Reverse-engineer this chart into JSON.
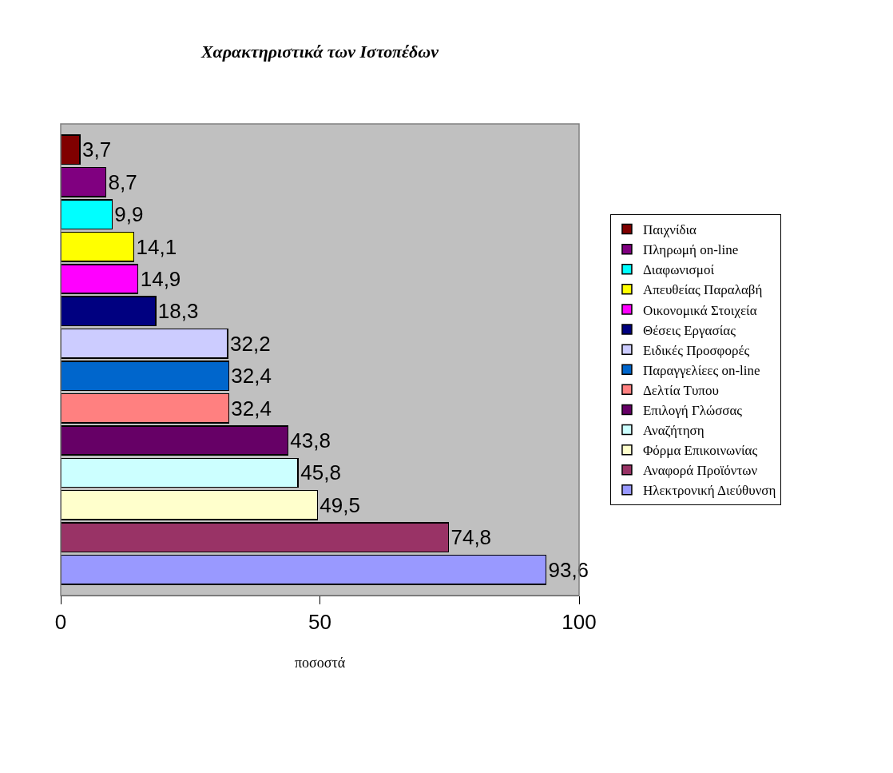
{
  "chart_data": {
    "type": "bar",
    "orientation": "horizontal",
    "title": "Χαρακτηριστικά των Ιστοπέδων",
    "xlabel": "ποσοστά",
    "categories": [
      null,
      null,
      null,
      null,
      null,
      null,
      null,
      null,
      null,
      null,
      null,
      null,
      null,
      null
    ],
    "series": [
      {
        "name": "Παιχνίδια",
        "color": "#800000",
        "values": [
          3.7,
          null,
          null,
          null,
          null,
          null,
          null,
          null,
          null,
          null,
          null,
          null,
          null,
          null
        ],
        "value_labels": [
          "3,7",
          null,
          null,
          null,
          null,
          null,
          null,
          null,
          null,
          null,
          null,
          null,
          null,
          null
        ]
      },
      {
        "name": "Πληρωμή on-line",
        "color": "#800080",
        "values": [
          null,
          8.7,
          null,
          null,
          null,
          null,
          null,
          null,
          null,
          null,
          null,
          null,
          null,
          null
        ],
        "value_labels": [
          null,
          "8,7",
          null,
          null,
          null,
          null,
          null,
          null,
          null,
          null,
          null,
          null,
          null,
          null
        ]
      },
      {
        "name": "Διαφωνισμοί",
        "color": "#00ffff",
        "values": [
          null,
          null,
          9.9,
          null,
          null,
          null,
          null,
          null,
          null,
          null,
          null,
          null,
          null,
          null
        ],
        "value_labels": [
          null,
          null,
          "9,9",
          null,
          null,
          null,
          null,
          null,
          null,
          null,
          null,
          null,
          null,
          null
        ]
      },
      {
        "name": "Απευθείας Παραλαβή",
        "color": "#ffff00",
        "values": [
          null,
          null,
          null,
          14.1,
          null,
          null,
          null,
          null,
          null,
          null,
          null,
          null,
          null,
          null
        ],
        "value_labels": [
          null,
          null,
          null,
          "14,1",
          null,
          null,
          null,
          null,
          null,
          null,
          null,
          null,
          null,
          null
        ]
      },
      {
        "name": "Οικονομικά Στοιχεία",
        "color": "#ff00ff",
        "values": [
          null,
          null,
          null,
          null,
          14.9,
          null,
          null,
          null,
          null,
          null,
          null,
          null,
          null,
          null
        ],
        "value_labels": [
          null,
          null,
          null,
          null,
          "14,9",
          null,
          null,
          null,
          null,
          null,
          null,
          null,
          null,
          null
        ]
      },
      {
        "name": "Θέσεις Εργασίας",
        "color": "#000080",
        "values": [
          null,
          null,
          null,
          null,
          null,
          18.3,
          null,
          null,
          null,
          null,
          null,
          null,
          null,
          null
        ],
        "value_labels": [
          null,
          null,
          null,
          null,
          null,
          "18,3",
          null,
          null,
          null,
          null,
          null,
          null,
          null,
          null
        ]
      },
      {
        "name": "Ειδικές Προσφορές",
        "color": "#ccccff",
        "values": [
          null,
          null,
          null,
          null,
          null,
          null,
          32.2,
          null,
          null,
          null,
          null,
          null,
          null,
          null
        ],
        "value_labels": [
          null,
          null,
          null,
          null,
          null,
          null,
          "32,2",
          null,
          null,
          null,
          null,
          null,
          null,
          null
        ]
      },
      {
        "name": "Παραγγελίεες on-line",
        "color": "#0066cc",
        "values": [
          null,
          null,
          null,
          null,
          null,
          null,
          null,
          32.4,
          null,
          null,
          null,
          null,
          null,
          null
        ],
        "value_labels": [
          null,
          null,
          null,
          null,
          null,
          null,
          null,
          "32,4",
          null,
          null,
          null,
          null,
          null,
          null
        ]
      },
      {
        "name": "Δελτία Τυπου",
        "color": "#ff8080",
        "values": [
          null,
          null,
          null,
          null,
          null,
          null,
          null,
          null,
          32.4,
          null,
          null,
          null,
          null,
          null
        ],
        "value_labels": [
          null,
          null,
          null,
          null,
          null,
          null,
          null,
          null,
          "32,4",
          null,
          null,
          null,
          null,
          null
        ]
      },
      {
        "name": "Επιλογή Γλώσσας",
        "color": "#660066",
        "values": [
          null,
          null,
          null,
          null,
          null,
          null,
          null,
          null,
          null,
          43.8,
          null,
          null,
          null,
          null
        ],
        "value_labels": [
          null,
          null,
          null,
          null,
          null,
          null,
          null,
          null,
          null,
          "43,8",
          null,
          null,
          null,
          null
        ]
      },
      {
        "name": "Αναζήτηση",
        "color": "#ccffff",
        "values": [
          null,
          null,
          null,
          null,
          null,
          null,
          null,
          null,
          null,
          null,
          45.8,
          null,
          null,
          null
        ],
        "value_labels": [
          null,
          null,
          null,
          null,
          null,
          null,
          null,
          null,
          null,
          null,
          "45,8",
          null,
          null,
          null
        ]
      },
      {
        "name": "Φόρμα Επικοινωνίας",
        "color": "#ffffcc",
        "values": [
          null,
          null,
          null,
          null,
          null,
          null,
          null,
          null,
          null,
          null,
          null,
          49.5,
          null,
          null
        ],
        "value_labels": [
          null,
          null,
          null,
          null,
          null,
          null,
          null,
          null,
          null,
          null,
          null,
          "49,5",
          null,
          null
        ]
      },
      {
        "name": "Αναφορά Προϊόντων",
        "color": "#993366",
        "values": [
          null,
          null,
          null,
          null,
          null,
          null,
          null,
          null,
          null,
          null,
          null,
          null,
          74.8,
          null
        ],
        "value_labels": [
          null,
          null,
          null,
          null,
          null,
          null,
          null,
          null,
          null,
          null,
          null,
          null,
          "74,8",
          null
        ]
      },
      {
        "name": "Ηλεκτρονική Διεύθυνση",
        "color": "#9999ff",
        "values": [
          null,
          null,
          null,
          null,
          null,
          null,
          null,
          null,
          null,
          null,
          null,
          null,
          null,
          93.6
        ],
        "value_labels": [
          null,
          null,
          null,
          null,
          null,
          null,
          null,
          null,
          null,
          null,
          null,
          null,
          null,
          "93,6"
        ]
      }
    ],
    "stacked": true,
    "xlim": [
      0,
      100
    ],
    "xticks": [
      0,
      50,
      100
    ],
    "legend": "right"
  }
}
